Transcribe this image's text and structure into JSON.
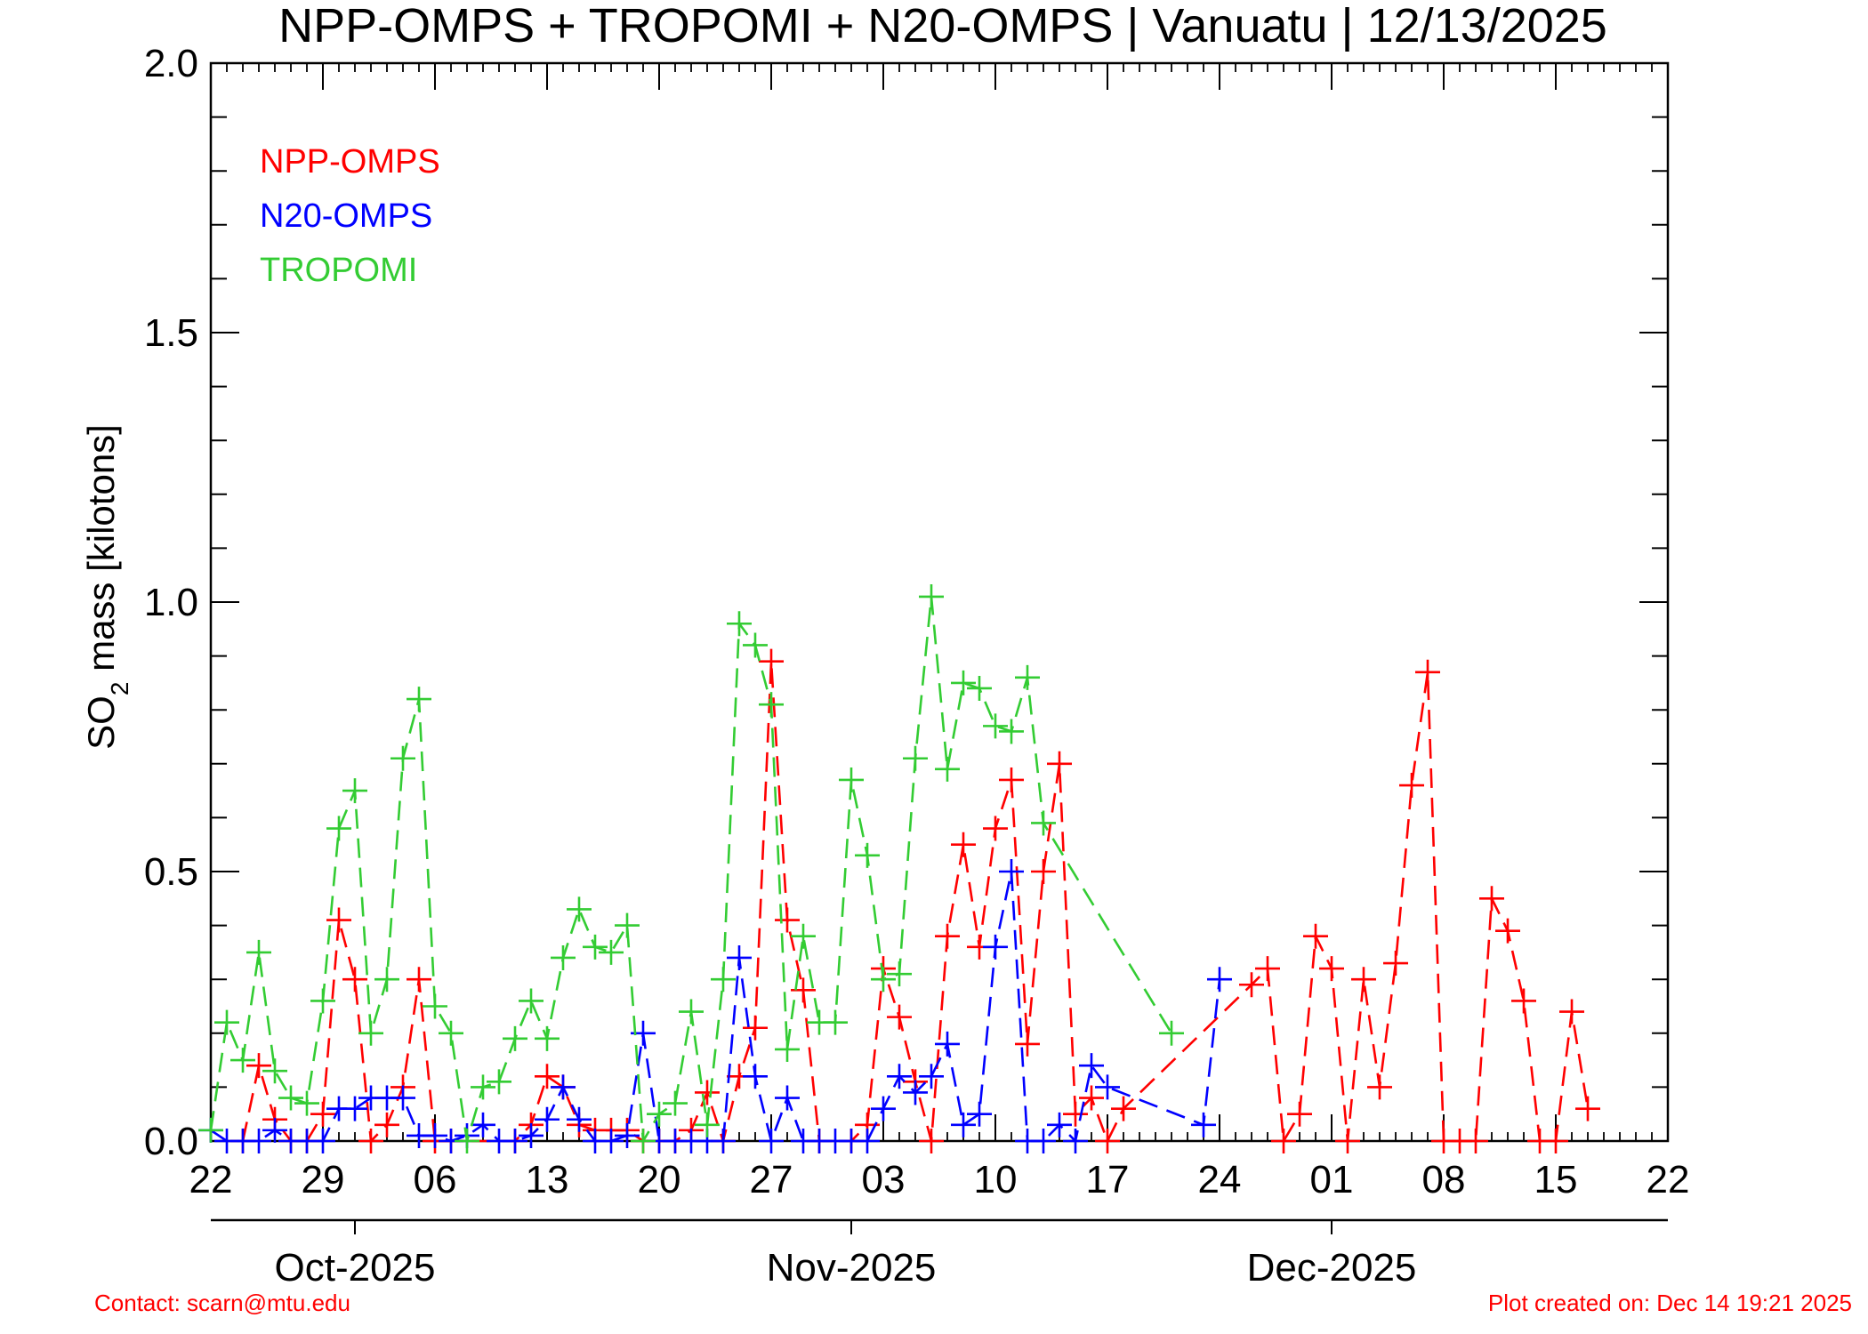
{
  "chart_data": {
    "type": "line",
    "title": "NPP-OMPS + TROPOMI + N20-OMPS | Vanuatu | 12/13/2025",
    "ylabel_main": "SO",
    "ylabel_sub": "2",
    "ylabel_rest": " mass [kilotons]",
    "ylim": [
      0,
      2.0
    ],
    "xlim": [
      "2025-09-22",
      "2025-12-22"
    ],
    "y_ticks": [
      {
        "value": 0.0,
        "label": "0.0"
      },
      {
        "value": 0.5,
        "label": "0.5"
      },
      {
        "value": 1.0,
        "label": "1.0"
      },
      {
        "value": 1.5,
        "label": "1.5"
      },
      {
        "value": 2.0,
        "label": "2.0"
      }
    ],
    "x_ticks": [
      {
        "date": "2025-09-22",
        "label": "22"
      },
      {
        "date": "2025-09-29",
        "label": "29"
      },
      {
        "date": "2025-10-06",
        "label": "06"
      },
      {
        "date": "2025-10-13",
        "label": "13"
      },
      {
        "date": "2025-10-20",
        "label": "20"
      },
      {
        "date": "2025-10-27",
        "label": "27"
      },
      {
        "date": "2025-11-03",
        "label": "03"
      },
      {
        "date": "2025-11-10",
        "label": "10"
      },
      {
        "date": "2025-11-17",
        "label": "17"
      },
      {
        "date": "2025-11-24",
        "label": "24"
      },
      {
        "date": "2025-12-01",
        "label": "01"
      },
      {
        "date": "2025-12-08",
        "label": "08"
      },
      {
        "date": "2025-12-15",
        "label": "15"
      },
      {
        "date": "2025-12-22",
        "label": "22"
      }
    ],
    "month_axis": [
      {
        "date": "2025-10-01",
        "label": "Oct-2025"
      },
      {
        "date": "2025-11-01",
        "label": "Nov-2025"
      },
      {
        "date": "2025-12-01",
        "label": "Dec-2025"
      }
    ],
    "legend_position": "top-left",
    "series": [
      {
        "name": "NPP-OMPS",
        "color": "#ff0000",
        "points": [
          [
            "2025-09-24",
            0.0
          ],
          [
            "2025-09-25",
            0.14
          ],
          [
            "2025-09-26",
            0.04
          ],
          [
            "2025-09-27",
            0.0
          ],
          [
            "2025-09-28",
            0.0
          ],
          [
            "2025-09-29",
            0.05
          ],
          [
            "2025-09-30",
            0.41
          ],
          [
            "2025-10-01",
            0.3
          ],
          [
            "2025-10-02",
            0.0
          ],
          [
            "2025-10-03",
            0.03
          ],
          [
            "2025-10-04",
            0.1
          ],
          [
            "2025-10-05",
            0.3
          ],
          [
            "2025-10-06",
            0.0
          ],
          [
            "2025-10-07",
            0.0
          ],
          [
            "2025-10-11",
            0.0
          ],
          [
            "2025-10-12",
            0.03
          ],
          [
            "2025-10-13",
            0.12
          ],
          [
            "2025-10-14",
            0.1
          ],
          [
            "2025-10-15",
            0.03
          ],
          [
            "2025-10-16",
            0.02
          ],
          [
            "2025-10-17",
            0.02
          ],
          [
            "2025-10-18",
            0.02
          ],
          [
            "2025-10-19",
            0.0
          ],
          [
            "2025-10-20",
            0.0
          ],
          [
            "2025-10-21",
            0.0
          ],
          [
            "2025-10-22",
            0.02
          ],
          [
            "2025-10-23",
            0.09
          ],
          [
            "2025-10-24",
            0.0
          ],
          [
            "2025-10-25",
            0.12
          ],
          [
            "2025-10-26",
            0.21
          ],
          [
            "2025-10-27",
            0.89
          ],
          [
            "2025-10-28",
            0.41
          ],
          [
            "2025-10-29",
            0.28
          ],
          [
            "2025-10-30",
            0.0
          ],
          [
            "2025-11-01",
            0.0
          ],
          [
            "2025-11-02",
            0.03
          ],
          [
            "2025-11-03",
            0.32
          ],
          [
            "2025-11-04",
            0.23
          ],
          [
            "2025-11-05",
            0.11
          ],
          [
            "2025-11-06",
            0.0
          ],
          [
            "2025-11-07",
            0.38
          ],
          [
            "2025-11-08",
            0.55
          ],
          [
            "2025-11-09",
            0.36
          ],
          [
            "2025-11-10",
            0.58
          ],
          [
            "2025-11-11",
            0.67
          ],
          [
            "2025-11-12",
            0.18
          ],
          [
            "2025-11-13",
            0.5
          ],
          [
            "2025-11-14",
            0.7
          ],
          [
            "2025-11-15",
            0.05
          ],
          [
            "2025-11-16",
            0.08
          ],
          [
            "2025-11-17",
            0.0
          ],
          [
            "2025-11-18",
            0.06
          ],
          [
            "2025-11-26",
            0.29
          ],
          [
            "2025-11-27",
            0.32
          ],
          [
            "2025-11-28",
            0.0
          ],
          [
            "2025-11-29",
            0.05
          ],
          [
            "2025-11-30",
            0.38
          ],
          [
            "2025-12-01",
            0.32
          ],
          [
            "2025-12-02",
            0.0
          ],
          [
            "2025-12-03",
            0.3
          ],
          [
            "2025-12-04",
            0.1
          ],
          [
            "2025-12-05",
            0.33
          ],
          [
            "2025-12-06",
            0.66
          ],
          [
            "2025-12-07",
            0.87
          ],
          [
            "2025-12-08",
            0.0
          ],
          [
            "2025-12-09",
            0.0
          ],
          [
            "2025-12-10",
            0.0
          ],
          [
            "2025-12-11",
            0.45
          ],
          [
            "2025-12-12",
            0.39
          ],
          [
            "2025-12-13",
            0.26
          ],
          [
            "2025-12-14",
            0.0
          ],
          [
            "2025-12-15",
            0.0
          ],
          [
            "2025-12-16",
            0.24
          ],
          [
            "2025-12-17",
            0.06
          ]
        ]
      },
      {
        "name": "N20-OMPS",
        "color": "#0000ff",
        "points": [
          [
            "2025-09-22",
            0.02
          ],
          [
            "2025-09-23",
            0.0
          ],
          [
            "2025-09-24",
            0.0
          ],
          [
            "2025-09-25",
            0.0
          ],
          [
            "2025-09-26",
            0.02
          ],
          [
            "2025-09-27",
            0.0
          ],
          [
            "2025-09-28",
            0.0
          ],
          [
            "2025-09-29",
            0.0
          ],
          [
            "2025-09-30",
            0.06
          ],
          [
            "2025-10-01",
            0.06
          ],
          [
            "2025-10-02",
            0.08
          ],
          [
            "2025-10-03",
            0.08
          ],
          [
            "2025-10-04",
            0.08
          ],
          [
            "2025-10-05",
            0.01
          ],
          [
            "2025-10-06",
            0.01
          ],
          [
            "2025-10-07",
            0.0
          ],
          [
            "2025-10-08",
            0.01
          ],
          [
            "2025-10-09",
            0.03
          ],
          [
            "2025-10-10",
            0.0
          ],
          [
            "2025-10-11",
            0.0
          ],
          [
            "2025-10-12",
            0.01
          ],
          [
            "2025-10-13",
            0.04
          ],
          [
            "2025-10-14",
            0.1
          ],
          [
            "2025-10-15",
            0.04
          ],
          [
            "2025-10-16",
            0.0
          ],
          [
            "2025-10-17",
            0.0
          ],
          [
            "2025-10-18",
            0.01
          ],
          [
            "2025-10-19",
            0.2
          ],
          [
            "2025-10-20",
            0.0
          ],
          [
            "2025-10-21",
            0.0
          ],
          [
            "2025-10-22",
            0.0
          ],
          [
            "2025-10-23",
            0.0
          ],
          [
            "2025-10-24",
            0.0
          ],
          [
            "2025-10-25",
            0.34
          ],
          [
            "2025-10-26",
            0.12
          ],
          [
            "2025-10-27",
            0.0
          ],
          [
            "2025-10-28",
            0.08
          ],
          [
            "2025-10-29",
            0.0
          ],
          [
            "2025-10-30",
            0.0
          ],
          [
            "2025-10-31",
            0.0
          ],
          [
            "2025-11-01",
            0.0
          ],
          [
            "2025-11-02",
            0.0
          ],
          [
            "2025-11-03",
            0.06
          ],
          [
            "2025-11-04",
            0.12
          ],
          [
            "2025-11-05",
            0.09
          ],
          [
            "2025-11-06",
            0.12
          ],
          [
            "2025-11-07",
            0.18
          ],
          [
            "2025-11-08",
            0.03
          ],
          [
            "2025-11-09",
            0.05
          ],
          [
            "2025-11-10",
            0.36
          ],
          [
            "2025-11-11",
            0.5
          ],
          [
            "2025-11-12",
            0.0
          ],
          [
            "2025-11-13",
            0.0
          ],
          [
            "2025-11-14",
            0.03
          ],
          [
            "2025-11-15",
            0.0
          ],
          [
            "2025-11-16",
            0.14
          ],
          [
            "2025-11-17",
            0.1
          ],
          [
            "2025-11-23",
            0.03
          ],
          [
            "2025-11-24",
            0.3
          ]
        ]
      },
      {
        "name": "TROPOMI",
        "color": "#33cc33",
        "points": [
          [
            "2025-09-22",
            0.02
          ],
          [
            "2025-09-23",
            0.22
          ],
          [
            "2025-09-24",
            0.15
          ],
          [
            "2025-09-25",
            0.35
          ],
          [
            "2025-09-26",
            0.13
          ],
          [
            "2025-09-27",
            0.08
          ],
          [
            "2025-09-28",
            0.07
          ],
          [
            "2025-09-29",
            0.26
          ],
          [
            "2025-09-30",
            0.58
          ],
          [
            "2025-10-01",
            0.65
          ],
          [
            "2025-10-02",
            0.2
          ],
          [
            "2025-10-03",
            0.3
          ],
          [
            "2025-10-04",
            0.71
          ],
          [
            "2025-10-05",
            0.82
          ],
          [
            "2025-10-06",
            0.25
          ],
          [
            "2025-10-07",
            0.2
          ],
          [
            "2025-10-08",
            0.0
          ],
          [
            "2025-10-09",
            0.1
          ],
          [
            "2025-10-10",
            0.11
          ],
          [
            "2025-10-11",
            0.19
          ],
          [
            "2025-10-12",
            0.26
          ],
          [
            "2025-10-13",
            0.19
          ],
          [
            "2025-10-14",
            0.34
          ],
          [
            "2025-10-15",
            0.43
          ],
          [
            "2025-10-16",
            0.36
          ],
          [
            "2025-10-17",
            0.35
          ],
          [
            "2025-10-18",
            0.4
          ],
          [
            "2025-10-19",
            0.0
          ],
          [
            "2025-10-20",
            0.05
          ],
          [
            "2025-10-21",
            0.07
          ],
          [
            "2025-10-22",
            0.24
          ],
          [
            "2025-10-23",
            0.03
          ],
          [
            "2025-10-24",
            0.3
          ],
          [
            "2025-10-25",
            0.96
          ],
          [
            "2025-10-26",
            0.92
          ],
          [
            "2025-10-27",
            0.81
          ],
          [
            "2025-10-28",
            0.17
          ],
          [
            "2025-10-29",
            0.38
          ],
          [
            "2025-10-30",
            0.22
          ],
          [
            "2025-10-31",
            0.22
          ],
          [
            "2025-11-01",
            0.67
          ],
          [
            "2025-11-02",
            0.53
          ],
          [
            "2025-11-03",
            0.3
          ],
          [
            "2025-11-04",
            0.31
          ],
          [
            "2025-11-05",
            0.71
          ],
          [
            "2025-11-06",
            1.01
          ],
          [
            "2025-11-07",
            0.69
          ],
          [
            "2025-11-08",
            0.85
          ],
          [
            "2025-11-09",
            0.84
          ],
          [
            "2025-11-10",
            0.77
          ],
          [
            "2025-11-11",
            0.76
          ],
          [
            "2025-11-12",
            0.86
          ],
          [
            "2025-11-13",
            0.59
          ],
          [
            "2025-11-21",
            0.2
          ]
        ]
      }
    ]
  },
  "footer": {
    "contact": "Contact: scarn@mtu.edu",
    "created": "Plot created on: Dec 14 19:21 2025"
  }
}
